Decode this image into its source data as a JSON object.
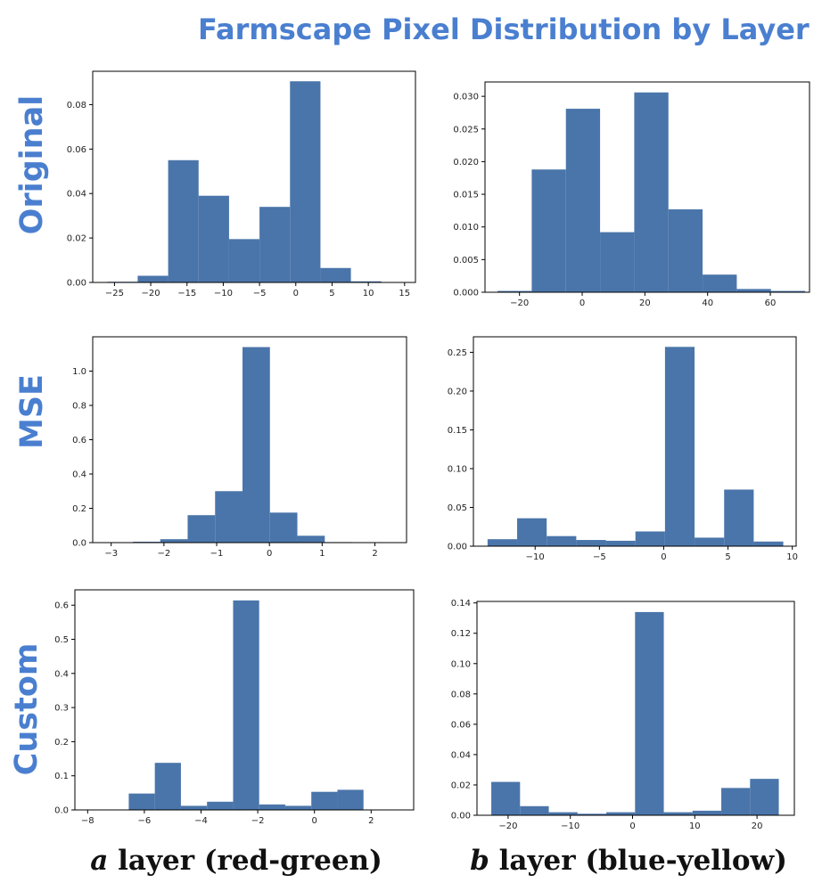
{
  "title": "Farmscape Pixel Distribution by Layer",
  "row_labels": [
    "Original",
    "MSE",
    "Custom"
  ],
  "col_labels": [
    {
      "symbol": "a",
      "text": " layer (red-green)"
    },
    {
      "symbol": "b",
      "text": " layer (blue-yellow)"
    }
  ],
  "colors": {
    "bar": "#4a75aa",
    "title": "#4a7fd0"
  },
  "chart_data": [
    {
      "type": "bar",
      "row": "Original",
      "column": "a layer (red-green)",
      "bin_edges": [
        -26,
        -21.8,
        -17.6,
        -13.4,
        -9.2,
        -5,
        -0.8,
        3.4,
        7.6,
        11.8,
        16
      ],
      "values": [
        0.0003,
        0.003,
        0.055,
        0.039,
        0.0195,
        0.034,
        0.0905,
        0.0065,
        0.0005,
        0.0001
      ],
      "xlim": [
        -28,
        16.5
      ],
      "ylim": [
        0,
        0.095
      ],
      "xticks": [
        -25,
        -20,
        -15,
        -10,
        -5,
        0,
        5,
        10,
        15
      ],
      "yticks": [
        0.0,
        0.02,
        0.04,
        0.06,
        0.08
      ],
      "ytick_labels": [
        "0.00",
        "0.02",
        "0.04",
        "0.06",
        "0.08"
      ]
    },
    {
      "type": "bar",
      "row": "Original",
      "column": "b layer (blue-yellow)",
      "bin_edges": [
        -27,
        -16.1,
        -5.2,
        5.7,
        16.6,
        27.5,
        38.4,
        49.3,
        60.2,
        71.1,
        82
      ],
      "values": [
        0.0002,
        0.0188,
        0.0281,
        0.0092,
        0.0306,
        0.0127,
        0.0027,
        0.0005,
        0.0002,
        0.0
      ],
      "xlim": [
        -31,
        72.5
      ],
      "ylim": [
        0,
        0.0322
      ],
      "xticks": [
        -20,
        0,
        20,
        40,
        60
      ],
      "yticks": [
        0.0,
        0.005,
        0.01,
        0.015,
        0.02,
        0.025,
        0.03
      ],
      "ytick_labels": [
        "0.000",
        "0.005",
        "0.010",
        "0.015",
        "0.020",
        "0.025",
        "0.030"
      ]
    },
    {
      "type": "bar",
      "row": "MSE",
      "column": "a layer (red-green)",
      "bin_edges": [
        -2.59,
        -2.07,
        -1.55,
        -1.03,
        -0.51,
        0.01,
        0.53,
        1.05,
        1.57,
        2.09,
        2.61
      ],
      "values": [
        0.005,
        0.02,
        0.16,
        0.3,
        1.14,
        0.175,
        0.04,
        0.003,
        0.001,
        0.0
      ],
      "xlim": [
        -3.35,
        2.6
      ],
      "ylim": [
        0,
        1.2
      ],
      "xticks": [
        -3,
        -2,
        -1,
        0,
        1,
        2
      ],
      "yticks": [
        0.0,
        0.2,
        0.4,
        0.6,
        0.8,
        1.0
      ],
      "ytick_labels": [
        "0.0",
        "0.2",
        "0.4",
        "0.6",
        "0.8",
        "1.0"
      ]
    },
    {
      "type": "bar",
      "row": "MSE",
      "column": "b layer (blue-yellow)",
      "bin_edges": [
        -13.7,
        -11.4,
        -9.1,
        -6.8,
        -4.5,
        -2.2,
        0.1,
        2.4,
        4.7,
        7.0,
        9.3
      ],
      "values": [
        0.009,
        0.036,
        0.013,
        0.008,
        0.007,
        0.019,
        0.257,
        0.011,
        0.073,
        0.006
      ],
      "xlim": [
        -14.8,
        10.3
      ],
      "ylim": [
        0,
        0.27
      ],
      "xticks": [
        -10,
        -5,
        0,
        5,
        10
      ],
      "yticks": [
        0.0,
        0.05,
        0.1,
        0.15,
        0.2,
        0.25
      ],
      "ytick_labels": [
        "0.00",
        "0.05",
        "0.10",
        "0.15",
        "0.20",
        "0.25"
      ]
    },
    {
      "type": "bar",
      "row": "Custom",
      "column": "a layer (red-green)",
      "bin_edges": [
        -6.55,
        -5.63,
        -4.71,
        -3.79,
        -2.87,
        -1.95,
        -1.03,
        -0.11,
        0.81,
        1.73,
        2.65
      ],
      "values": [
        0.048,
        0.138,
        0.012,
        0.024,
        0.614,
        0.016,
        0.012,
        0.053,
        0.059,
        0.0
      ],
      "xlim": [
        -8.45,
        3.5
      ],
      "ylim": [
        0,
        0.645
      ],
      "xticks": [
        -8,
        -6,
        -4,
        -2,
        0,
        2
      ],
      "yticks": [
        0.0,
        0.1,
        0.2,
        0.3,
        0.4,
        0.5,
        0.6
      ],
      "ytick_labels": [
        "0.0",
        "0.1",
        "0.2",
        "0.3",
        "0.4",
        "0.5",
        "0.6"
      ]
    },
    {
      "type": "bar",
      "row": "Custom",
      "column": "b layer (blue-yellow)",
      "bin_edges": [
        -22.7,
        -18.08,
        -13.46,
        -8.84,
        -4.22,
        0.4,
        5.02,
        9.64,
        14.26,
        18.88,
        23.5
      ],
      "values": [
        0.022,
        0.006,
        0.002,
        0.001,
        0.002,
        0.134,
        0.002,
        0.003,
        0.018,
        0.024
      ],
      "xlim": [
        -25,
        26
      ],
      "ylim": [
        0,
        0.141
      ],
      "xticks": [
        -20,
        -10,
        0,
        10,
        20
      ],
      "yticks": [
        0.0,
        0.02,
        0.04,
        0.06,
        0.08,
        0.1,
        0.12,
        0.14
      ],
      "ytick_labels": [
        "0.00",
        "0.02",
        "0.04",
        "0.06",
        "0.08",
        "0.10",
        "0.12",
        "0.14"
      ]
    }
  ]
}
